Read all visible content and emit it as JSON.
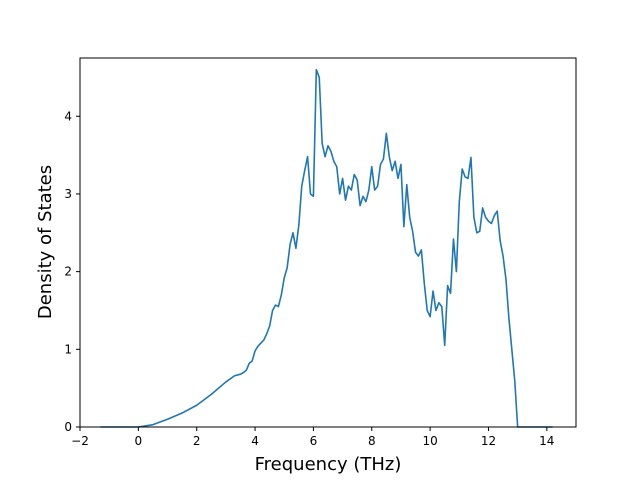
{
  "chart_data": {
    "type": "line",
    "title": "",
    "xlabel": "Frequency (THz)",
    "ylabel": "Density of States",
    "xlim": [
      -2,
      15
    ],
    "ylim": [
      0,
      4.75
    ],
    "xticks": [
      -2,
      0,
      2,
      4,
      6,
      8,
      10,
      12,
      14
    ],
    "yticks": [
      0,
      1,
      2,
      3,
      4
    ],
    "grid": false,
    "line_color": "#1f77b4",
    "series": [
      {
        "x": [
          -1.3,
          -1.0,
          -0.5,
          0,
          0.5,
          1.0,
          1.5,
          2.0,
          2.5,
          3.0,
          3.3,
          3.5,
          3.6,
          3.7,
          3.8,
          3.9,
          4.0,
          4.1,
          4.2,
          4.3,
          4.4,
          4.5,
          4.6,
          4.7,
          4.8,
          4.9,
          5.0,
          5.1,
          5.2,
          5.3,
          5.4,
          5.5,
          5.6,
          5.7,
          5.8,
          5.9,
          6.0,
          6.1,
          6.15,
          6.2,
          6.3,
          6.4,
          6.5,
          6.6,
          6.7,
          6.8,
          6.9,
          7.0,
          7.1,
          7.2,
          7.3,
          7.4,
          7.5,
          7.6,
          7.7,
          7.8,
          7.9,
          8.0,
          8.1,
          8.2,
          8.3,
          8.4,
          8.5,
          8.6,
          8.7,
          8.8,
          8.9,
          9.0,
          9.1,
          9.2,
          9.3,
          9.4,
          9.5,
          9.6,
          9.7,
          9.8,
          9.9,
          10.0,
          10.1,
          10.2,
          10.3,
          10.4,
          10.5,
          10.6,
          10.7,
          10.8,
          10.9,
          11.0,
          11.1,
          11.2,
          11.3,
          11.4,
          11.5,
          11.6,
          11.7,
          11.8,
          11.9,
          12.0,
          12.1,
          12.2,
          12.3,
          12.4,
          12.5,
          12.6,
          12.7,
          12.8,
          12.9,
          13.0,
          14.2
        ],
        "y": [
          0,
          0,
          0,
          0,
          0.03,
          0.1,
          0.18,
          0.28,
          0.42,
          0.58,
          0.66,
          0.68,
          0.7,
          0.73,
          0.82,
          0.85,
          0.98,
          1.04,
          1.08,
          1.12,
          1.2,
          1.3,
          1.5,
          1.57,
          1.55,
          1.7,
          1.92,
          2.05,
          2.35,
          2.5,
          2.3,
          2.6,
          3.1,
          3.3,
          3.48,
          3.0,
          2.97,
          4.6,
          4.55,
          4.5,
          3.65,
          3.48,
          3.62,
          3.55,
          3.42,
          3.35,
          3.0,
          3.2,
          2.92,
          3.1,
          3.05,
          3.25,
          3.18,
          2.85,
          2.97,
          2.9,
          3.05,
          3.35,
          3.05,
          3.1,
          3.38,
          3.45,
          3.78,
          3.48,
          3.3,
          3.42,
          3.2,
          3.38,
          2.58,
          3.12,
          2.7,
          2.52,
          2.25,
          2.2,
          2.28,
          1.85,
          1.5,
          1.42,
          1.75,
          1.5,
          1.6,
          1.55,
          1.05,
          1.82,
          1.72,
          2.42,
          2.0,
          2.9,
          3.32,
          3.22,
          3.2,
          3.47,
          2.7,
          2.5,
          2.52,
          2.82,
          2.7,
          2.65,
          2.62,
          2.72,
          2.78,
          2.4,
          2.2,
          1.9,
          1.4,
          1.0,
          0.6,
          0,
          0
        ]
      }
    ]
  }
}
